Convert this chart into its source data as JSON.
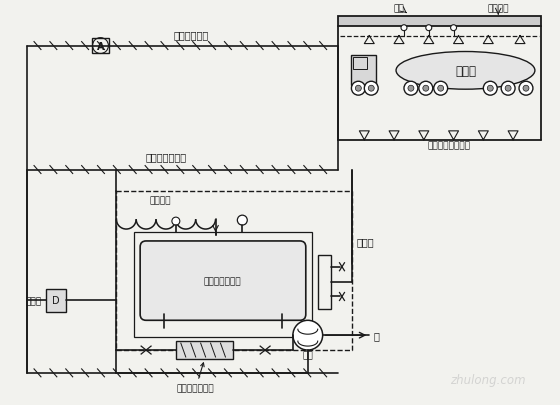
{
  "bg_color": "#f2f2ee",
  "line_color": "#1a1a1a",
  "labels": {
    "signal_amp": "信号放大装置",
    "foam_mix_line": "泡沫混合液管线",
    "aux_hose": "辅助软管",
    "foam_tank": "囊式泡沫液储罐",
    "foam_proportioner": "泡沫比例混合器",
    "rain_valve": "雨淋阀",
    "foam_station": "泡沫站",
    "water_pump": "水泵",
    "water": "水",
    "oil_tanker": "油槽车",
    "probe": "探头",
    "foam_nozzle": "泡沫喷头",
    "ground_foam_nozzle": "落地雾化泡沫喷头"
  },
  "watermark": "zhulong.com"
}
